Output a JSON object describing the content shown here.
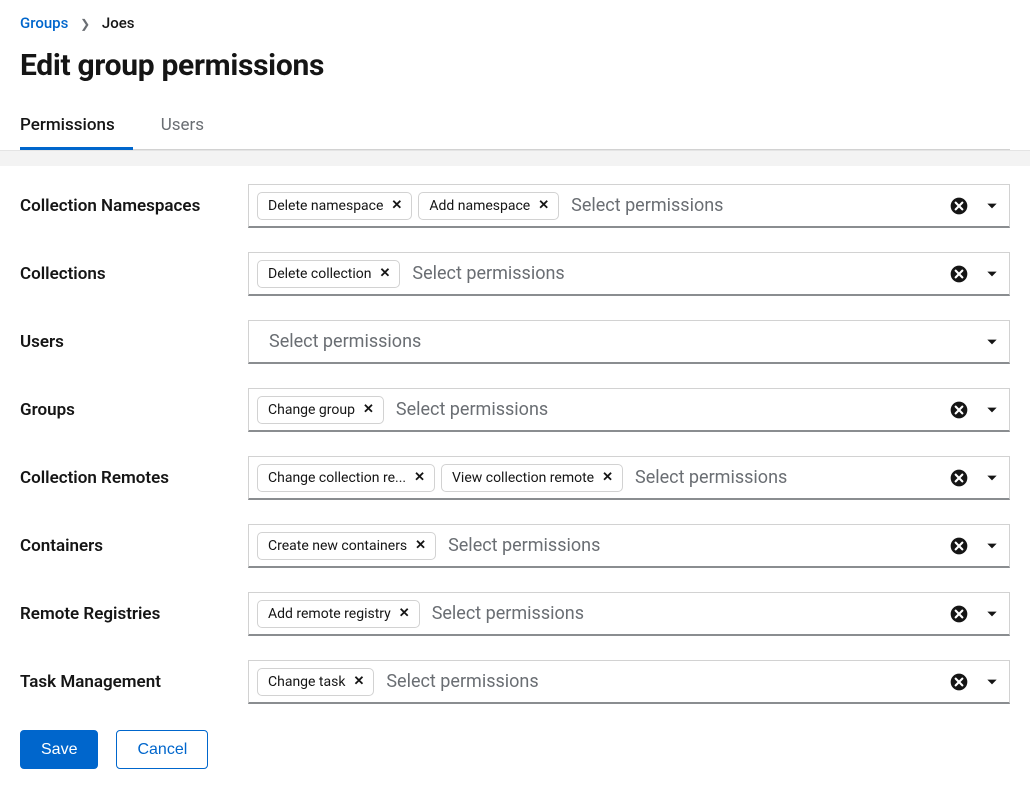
{
  "breadcrumb": {
    "root": "Groups",
    "current": "Joes"
  },
  "page_title": "Edit group permissions",
  "tabs": [
    {
      "label": "Permissions",
      "active": true
    },
    {
      "label": "Users",
      "active": false
    }
  ],
  "select_placeholder": "Select permissions",
  "rows": [
    {
      "key": "collection-namespaces",
      "label": "Collection Namespaces",
      "chips": [
        "Delete namespace",
        "Add namespace"
      ],
      "has_clear": true
    },
    {
      "key": "collections",
      "label": "Collections",
      "chips": [
        "Delete collection"
      ],
      "has_clear": true
    },
    {
      "key": "users",
      "label": "Users",
      "chips": [],
      "has_clear": false
    },
    {
      "key": "groups",
      "label": "Groups",
      "chips": [
        "Change group"
      ],
      "has_clear": true
    },
    {
      "key": "collection-remotes",
      "label": "Collection Remotes",
      "chips": [
        "Change collection re...",
        "View collection remote"
      ],
      "has_clear": true
    },
    {
      "key": "containers",
      "label": "Containers",
      "chips": [
        "Create new containers"
      ],
      "has_clear": true
    },
    {
      "key": "remote-registries",
      "label": "Remote Registries",
      "chips": [
        "Add remote registry"
      ],
      "has_clear": true
    },
    {
      "key": "task-management",
      "label": "Task Management",
      "chips": [
        "Change task"
      ],
      "has_clear": true
    }
  ],
  "buttons": {
    "save": "Save",
    "cancel": "Cancel"
  },
  "colors": {
    "link": "#0066cc",
    "primary": "#06c",
    "text": "#151515",
    "muted": "#6a6e73",
    "border": "#d2d2d2",
    "input_bottom": "#8a8d90",
    "band": "#f3f3f3"
  }
}
